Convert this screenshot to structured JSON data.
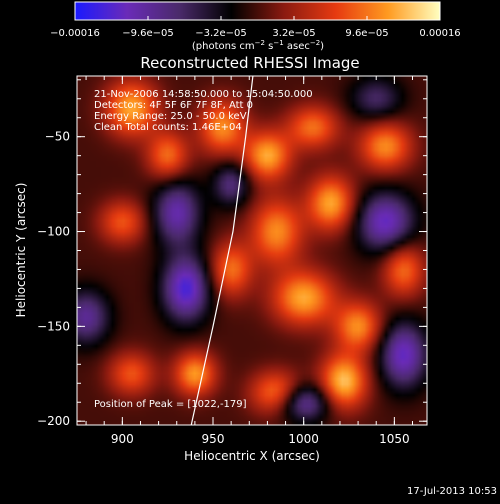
{
  "chart_data": {
    "type": "heatmap",
    "title": "Reconstructed RHESSI Image",
    "xlabel": "Heliocentric X (arcsec)",
    "ylabel": "Heliocentric Y (arcsec)",
    "xlim": [
      875,
      1068
    ],
    "ylim": [
      -202,
      -18
    ],
    "x_ticks": [
      900,
      950,
      1000,
      1050
    ],
    "y_ticks": [
      -50,
      -100,
      -150,
      -200
    ],
    "x_tick_labels": [
      "900",
      "950",
      "1000",
      "1050"
    ],
    "y_tick_labels": [
      "−50",
      "−100",
      "−150",
      "−200"
    ],
    "colorbar": {
      "range": [
        -0.00016,
        0.00016
      ],
      "tick_values": [
        -0.00016,
        -9.6e-05,
        -3.2e-05,
        3.2e-05,
        9.6e-05,
        0.00016
      ],
      "tick_labels": [
        "−0.00016",
        "−9.6e−05",
        "−3.2e−05",
        "3.2e−05",
        "9.6e−05",
        "0.00016"
      ],
      "units_main": "(photons cm",
      "units_sup1": "−2",
      "units_mid": " s",
      "units_sup2": "−1",
      "units_end": " asec",
      "units_sup3": "−2",
      "units_close": ")",
      "colors": [
        "#1a1aff",
        "#6a2bb8",
        "#4a2a6a",
        "#000000",
        "#8a1a10",
        "#e63a10",
        "#ff9a20",
        "#ffffc0"
      ]
    },
    "annotations": [
      "21-Nov-2006 14:58:50.000 to 15:04:50.000",
      "Detectors: 4F 5F 6F 7F 8F, Att 0",
      "Energy Range: 25.0 - 50.0 keV",
      "Clean     Total counts: 1.46E+04"
    ],
    "peak_label": "Position of Peak = [1022,-179]",
    "limb_points": [
      [
        972,
        -18
      ],
      [
        968,
        -50
      ],
      [
        961,
        -100
      ],
      [
        950,
        -150
      ],
      [
        938,
        -202
      ]
    ],
    "sources": [
      {
        "x": 905,
        "y": -35,
        "amp": 0.9,
        "sx": 10,
        "sy": 10
      },
      {
        "x": 925,
        "y": -60,
        "amp": 0.7,
        "sx": 8,
        "sy": 9
      },
      {
        "x": 900,
        "y": -95,
        "amp": 0.6,
        "sx": 9,
        "sy": 8
      },
      {
        "x": 955,
        "y": -45,
        "amp": 0.8,
        "sx": 9,
        "sy": 10
      },
      {
        "x": 980,
        "y": -60,
        "amp": 0.9,
        "sx": 9,
        "sy": 9
      },
      {
        "x": 1005,
        "y": -45,
        "amp": 0.7,
        "sx": 10,
        "sy": 8
      },
      {
        "x": 1045,
        "y": -55,
        "amp": 0.8,
        "sx": 10,
        "sy": 9
      },
      {
        "x": 985,
        "y": -100,
        "amp": 0.8,
        "sx": 10,
        "sy": 12
      },
      {
        "x": 1015,
        "y": -85,
        "amp": 0.9,
        "sx": 9,
        "sy": 10
      },
      {
        "x": 960,
        "y": -120,
        "amp": 0.7,
        "sx": 8,
        "sy": 10
      },
      {
        "x": 1000,
        "y": -135,
        "amp": 0.9,
        "sx": 12,
        "sy": 10
      },
      {
        "x": 1030,
        "y": -150,
        "amp": 0.8,
        "sx": 9,
        "sy": 9
      },
      {
        "x": 1022,
        "y": -179,
        "amp": 1.0,
        "sx": 9,
        "sy": 10
      },
      {
        "x": 940,
        "y": -175,
        "amp": 0.85,
        "sx": 8,
        "sy": 8
      },
      {
        "x": 985,
        "y": -185,
        "amp": 0.75,
        "sx": 10,
        "sy": 8
      },
      {
        "x": 905,
        "y": -175,
        "amp": 0.6,
        "sx": 9,
        "sy": 8
      },
      {
        "x": 1055,
        "y": -120,
        "amp": 0.7,
        "sx": 8,
        "sy": 10
      },
      {
        "x": 930,
        "y": -90,
        "amp": -0.8,
        "sx": 9,
        "sy": 12
      },
      {
        "x": 935,
        "y": -130,
        "amp": -1.0,
        "sx": 9,
        "sy": 12
      },
      {
        "x": 1045,
        "y": -95,
        "amp": -0.9,
        "sx": 11,
        "sy": 11
      },
      {
        "x": 1055,
        "y": -165,
        "amp": -0.9,
        "sx": 9,
        "sy": 12
      },
      {
        "x": 1000,
        "y": -190,
        "amp": -0.8,
        "sx": 10,
        "sy": 7
      },
      {
        "x": 960,
        "y": -75,
        "amp": -0.6,
        "sx": 7,
        "sy": 8
      },
      {
        "x": 880,
        "y": -145,
        "amp": -0.7,
        "sx": 9,
        "sy": 10
      },
      {
        "x": 1040,
        "y": -30,
        "amp": -0.5,
        "sx": 10,
        "sy": 8
      }
    ]
  },
  "footer": {
    "timestamp": "17-Jul-2013 10:53"
  }
}
